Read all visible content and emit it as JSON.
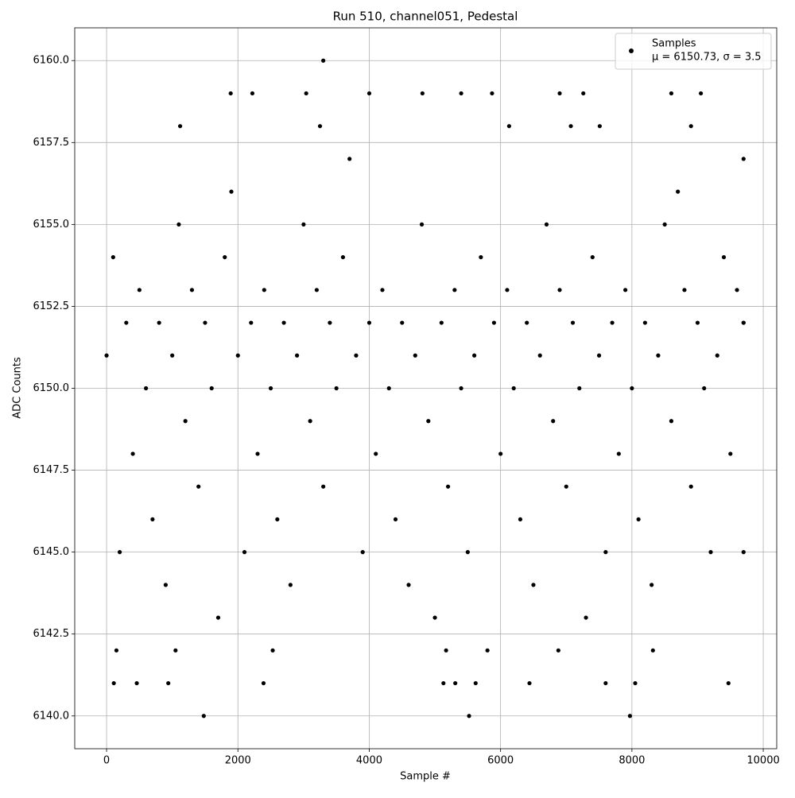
{
  "chart_data": {
    "type": "scatter",
    "title": "Run 510, channel051, Pedestal",
    "x_label": "Sample #",
    "y_label": "ADC Counts",
    "xlim": [
      -485,
      10205
    ],
    "ylim": [
      6139,
      6161
    ],
    "xticks": [
      0,
      2000,
      4000,
      6000,
      8000,
      10000
    ],
    "yticks": [
      {
        "value": 6140,
        "label": "6140.0"
      },
      {
        "value": 6142.5,
        "label": "6142.5"
      },
      {
        "value": 6145,
        "label": "6145.0"
      },
      {
        "value": 6147.5,
        "label": "6147.5"
      },
      {
        "value": 6150,
        "label": "6150.0"
      },
      {
        "value": 6152.5,
        "label": "6152.5"
      },
      {
        "value": 6155,
        "label": "6155.0"
      },
      {
        "value": 6157.5,
        "label": "6157.5"
      },
      {
        "value": 6160,
        "label": "6160.0"
      }
    ],
    "grid": true,
    "legend": "upper right",
    "legend_note": "μ = 6150.73, σ = 3.5",
    "series": [
      {
        "name": "Samples",
        "color": "#000000",
        "x": [
          0,
          100,
          200,
          300,
          400,
          500,
          600,
          700,
          800,
          900,
          1000,
          1100,
          1200,
          1300,
          1400,
          1500,
          1600,
          1700,
          1800,
          1900,
          2000,
          2100,
          2200,
          2300,
          2400,
          2500,
          2600,
          2700,
          2800,
          2900,
          3000,
          3100,
          3200,
          3300,
          3400,
          3500,
          3600,
          3700,
          3800,
          3900,
          4000,
          4100,
          4200,
          4300,
          4400,
          4500,
          4600,
          4700,
          4800,
          4900,
          5000,
          5100,
          5200,
          5300,
          5400,
          5500,
          5600,
          5700,
          5800,
          5900,
          6000,
          6100,
          6200,
          6300,
          6400,
          6500,
          6600,
          6700,
          6800,
          6900,
          7000,
          7100,
          7200,
          7300,
          7400,
          7500,
          7600,
          7700,
          7800,
          7900,
          8000,
          8100,
          8200,
          8300,
          8400,
          8500,
          8600,
          8700,
          8800,
          8900,
          9000,
          9100,
          9200,
          9300,
          9400,
          9500,
          9600,
          9700,
          1480,
          5520,
          7970,
          3300,
          2220,
          1890,
          3040,
          4000,
          4810,
          5400,
          5870,
          6900,
          7260,
          8600,
          9050,
          1120,
          3250,
          6130,
          7070,
          7510,
          8900,
          110,
          460,
          940,
          2390,
          5130,
          5310,
          5620,
          6440,
          7600,
          8050,
          9470,
          9700,
          9700,
          9700,
          150,
          1050,
          2530,
          5170,
          6880,
          8320
        ],
        "values": [
          6151,
          6154,
          6145,
          6152,
          6148,
          6153,
          6150,
          6146,
          6152,
          6144,
          6151,
          6155,
          6149,
          6153,
          6147,
          6152,
          6150,
          6143,
          6154,
          6156,
          6151,
          6145,
          6152,
          6148,
          6153,
          6150,
          6146,
          6152,
          6144,
          6151,
          6155,
          6149,
          6153,
          6147,
          6152,
          6150,
          6154,
          6157,
          6151,
          6145,
          6152,
          6148,
          6153,
          6150,
          6146,
          6152,
          6144,
          6151,
          6155,
          6149,
          6143,
          6152,
          6147,
          6153,
          6150,
          6145,
          6151,
          6154,
          6142,
          6152,
          6148,
          6153,
          6150,
          6146,
          6152,
          6144,
          6151,
          6155,
          6149,
          6153,
          6147,
          6152,
          6150,
          6143,
          6154,
          6151,
          6145,
          6152,
          6148,
          6153,
          6150,
          6146,
          6152,
          6144,
          6151,
          6155,
          6149,
          6156,
          6153,
          6147,
          6152,
          6150,
          6145,
          6151,
          6154,
          6148,
          6153,
          6152,
          6140,
          6140,
          6140,
          6160,
          6159,
          6159,
          6159,
          6159,
          6159,
          6159,
          6159,
          6159,
          6159,
          6159,
          6159,
          6158,
          6158,
          6158,
          6158,
          6158,
          6158,
          6141,
          6141,
          6141,
          6141,
          6141,
          6141,
          6141,
          6141,
          6141,
          6141,
          6141,
          6157,
          6152,
          6145,
          6142,
          6142,
          6142,
          6142,
          6142,
          6142
        ]
      }
    ]
  }
}
